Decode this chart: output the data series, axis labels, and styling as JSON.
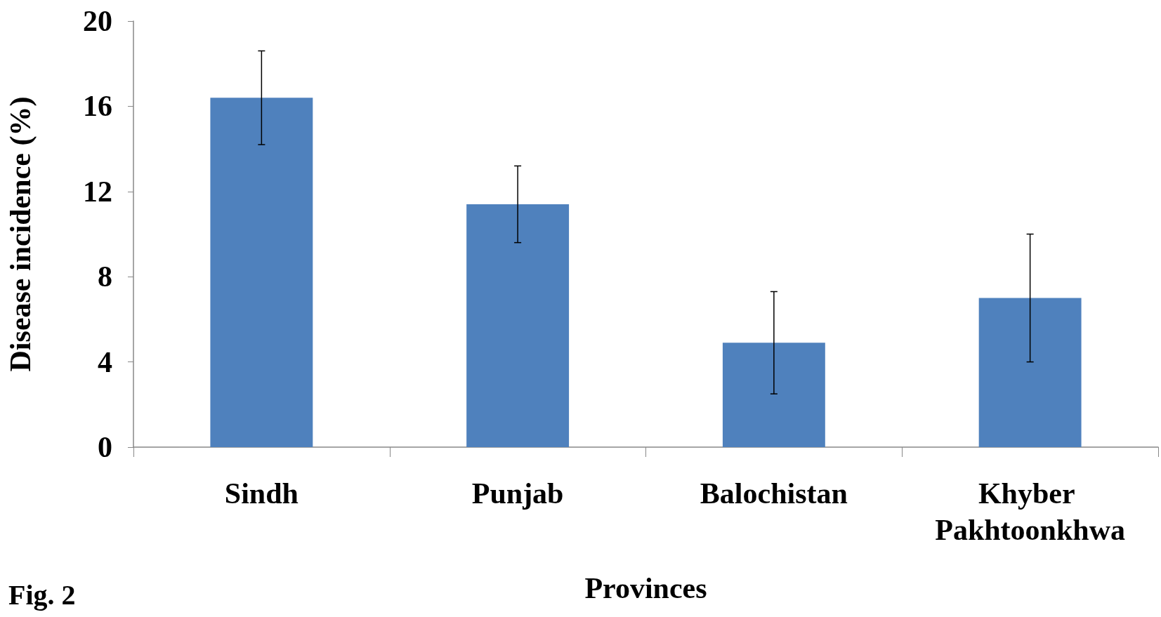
{
  "chart_data": {
    "type": "bar",
    "xlabel": "Provinces",
    "ylabel": "Disease incidence (%)",
    "categories": [
      "Sindh",
      "Punjab",
      "Balochistan",
      "Khyber Pakhtoonkhwa"
    ],
    "values": [
      16.4,
      11.4,
      4.9,
      7.0
    ],
    "errors": [
      2.2,
      1.8,
      2.4,
      3.0
    ],
    "color": "#4f81bd",
    "ylim": [
      0,
      20
    ],
    "yticks": [
      0,
      4,
      8,
      12,
      16,
      20
    ],
    "grid": false,
    "annotations": [
      "Fig. 2"
    ]
  }
}
